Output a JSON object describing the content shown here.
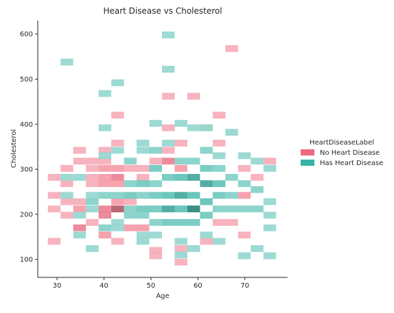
{
  "chart_data": {
    "type": "heatmap",
    "title": "Heart Disease vs Cholesterol",
    "xlabel": "Age",
    "ylabel": "Cholesterol",
    "xlim": [
      25.9,
      79.1
    ],
    "ylim": [
      60,
      630
    ],
    "x_ticks": [
      30,
      40,
      50,
      60,
      70
    ],
    "y_ticks": [
      100,
      200,
      300,
      400,
      500,
      600
    ],
    "x_bin_width": 2.7,
    "y_bin_width": 15,
    "grid": false,
    "legend": {
      "title": "HeartDiseaseLabel",
      "placement": "right"
    },
    "series": [
      {
        "name": "No Heart Disease",
        "color": "#f0687e",
        "cells": [
          {
            "x": 29.4,
            "y": 282,
            "count": 1
          },
          {
            "x": 29.4,
            "y": 242,
            "count": 1
          },
          {
            "x": 29.4,
            "y": 212,
            "count": 1
          },
          {
            "x": 29.4,
            "y": 140,
            "count": 1
          },
          {
            "x": 32.1,
            "y": 302,
            "count": 1
          },
          {
            "x": 32.1,
            "y": 268,
            "count": 1
          },
          {
            "x": 32.1,
            "y": 228,
            "count": 1
          },
          {
            "x": 32.1,
            "y": 198,
            "count": 1
          },
          {
            "x": 34.8,
            "y": 342,
            "count": 1
          },
          {
            "x": 34.8,
            "y": 318,
            "count": 1
          },
          {
            "x": 34.8,
            "y": 228,
            "count": 1
          },
          {
            "x": 34.8,
            "y": 212,
            "count": 2
          },
          {
            "x": 34.8,
            "y": 170,
            "count": 3
          },
          {
            "x": 37.5,
            "y": 318,
            "count": 1
          },
          {
            "x": 37.5,
            "y": 302,
            "count": 1
          },
          {
            "x": 37.5,
            "y": 282,
            "count": 1
          },
          {
            "x": 37.5,
            "y": 268,
            "count": 1
          },
          {
            "x": 37.5,
            "y": 182,
            "count": 1
          },
          {
            "x": 40.2,
            "y": 342,
            "count": 1
          },
          {
            "x": 40.2,
            "y": 318,
            "count": 1
          },
          {
            "x": 40.2,
            "y": 302,
            "count": 2
          },
          {
            "x": 40.2,
            "y": 282,
            "count": 2
          },
          {
            "x": 40.2,
            "y": 268,
            "count": 2
          },
          {
            "x": 40.2,
            "y": 212,
            "count": 3
          },
          {
            "x": 40.2,
            "y": 198,
            "count": 3
          },
          {
            "x": 40.2,
            "y": 154,
            "count": 2
          },
          {
            "x": 42.9,
            "y": 420,
            "count": 1
          },
          {
            "x": 42.9,
            "y": 358,
            "count": 1
          },
          {
            "x": 42.9,
            "y": 302,
            "count": 2
          },
          {
            "x": 42.9,
            "y": 282,
            "count": 3
          },
          {
            "x": 42.9,
            "y": 268,
            "count": 2
          },
          {
            "x": 42.9,
            "y": 228,
            "count": 2
          },
          {
            "x": 42.9,
            "y": 212,
            "count": 4
          },
          {
            "x": 42.9,
            "y": 140,
            "count": 1
          },
          {
            "x": 45.6,
            "y": 302,
            "count": 1
          },
          {
            "x": 45.6,
            "y": 228,
            "count": 1
          },
          {
            "x": 45.6,
            "y": 170,
            "count": 2
          },
          {
            "x": 48.3,
            "y": 302,
            "count": 1
          },
          {
            "x": 48.3,
            "y": 282,
            "count": 1
          },
          {
            "x": 48.3,
            "y": 170,
            "count": 2
          },
          {
            "x": 51.0,
            "y": 318,
            "count": 1
          },
          {
            "x": 51.0,
            "y": 120,
            "count": 1
          },
          {
            "x": 51.0,
            "y": 108,
            "count": 1
          },
          {
            "x": 53.7,
            "y": 462,
            "count": 1
          },
          {
            "x": 53.7,
            "y": 392,
            "count": 1
          },
          {
            "x": 53.7,
            "y": 342,
            "count": 1
          },
          {
            "x": 53.7,
            "y": 318,
            "count": 3
          },
          {
            "x": 56.4,
            "y": 358,
            "count": 1
          },
          {
            "x": 56.4,
            "y": 302,
            "count": 2
          },
          {
            "x": 56.4,
            "y": 124,
            "count": 1
          },
          {
            "x": 56.4,
            "y": 94,
            "count": 1
          },
          {
            "x": 59.1,
            "y": 462,
            "count": 1
          },
          {
            "x": 61.8,
            "y": 392,
            "count": 1
          },
          {
            "x": 61.8,
            "y": 140,
            "count": 1
          },
          {
            "x": 64.5,
            "y": 420,
            "count": 1
          },
          {
            "x": 64.5,
            "y": 358,
            "count": 1
          },
          {
            "x": 64.5,
            "y": 182,
            "count": 1
          },
          {
            "x": 67.2,
            "y": 568,
            "count": 1
          },
          {
            "x": 67.2,
            "y": 182,
            "count": 1
          },
          {
            "x": 69.9,
            "y": 302,
            "count": 1
          },
          {
            "x": 69.9,
            "y": 242,
            "count": 2
          },
          {
            "x": 69.9,
            "y": 154,
            "count": 1
          },
          {
            "x": 72.6,
            "y": 282,
            "count": 1
          },
          {
            "x": 75.3,
            "y": 318,
            "count": 1
          }
        ]
      },
      {
        "name": "Has Heart Disease",
        "color": "#36b3a5",
        "cells": [
          {
            "x": 32.1,
            "y": 538,
            "count": 1
          },
          {
            "x": 32.1,
            "y": 282,
            "count": 1
          },
          {
            "x": 32.1,
            "y": 242,
            "count": 1
          },
          {
            "x": 34.8,
            "y": 282,
            "count": 1
          },
          {
            "x": 34.8,
            "y": 198,
            "count": 1
          },
          {
            "x": 34.8,
            "y": 154,
            "count": 1
          },
          {
            "x": 37.5,
            "y": 242,
            "count": 1
          },
          {
            "x": 37.5,
            "y": 228,
            "count": 2
          },
          {
            "x": 37.5,
            "y": 212,
            "count": 1
          },
          {
            "x": 37.5,
            "y": 124,
            "count": 1
          },
          {
            "x": 40.2,
            "y": 468,
            "count": 1
          },
          {
            "x": 40.2,
            "y": 392,
            "count": 1
          },
          {
            "x": 40.2,
            "y": 330,
            "count": 1
          },
          {
            "x": 40.2,
            "y": 242,
            "count": 2
          },
          {
            "x": 40.2,
            "y": 170,
            "count": 2
          },
          {
            "x": 42.9,
            "y": 492,
            "count": 1
          },
          {
            "x": 42.9,
            "y": 342,
            "count": 1
          },
          {
            "x": 42.9,
            "y": 242,
            "count": 2
          },
          {
            "x": 42.9,
            "y": 182,
            "count": 1
          },
          {
            "x": 42.9,
            "y": 170,
            "count": 1
          },
          {
            "x": 45.6,
            "y": 318,
            "count": 2
          },
          {
            "x": 45.6,
            "y": 268,
            "count": 2
          },
          {
            "x": 45.6,
            "y": 242,
            "count": 3
          },
          {
            "x": 45.6,
            "y": 212,
            "count": 2
          },
          {
            "x": 45.6,
            "y": 198,
            "count": 2
          },
          {
            "x": 48.3,
            "y": 358,
            "count": 1
          },
          {
            "x": 48.3,
            "y": 342,
            "count": 1
          },
          {
            "x": 48.3,
            "y": 268,
            "count": 3
          },
          {
            "x": 48.3,
            "y": 242,
            "count": 2
          },
          {
            "x": 48.3,
            "y": 212,
            "count": 3
          },
          {
            "x": 48.3,
            "y": 198,
            "count": 2
          },
          {
            "x": 48.3,
            "y": 154,
            "count": 1
          },
          {
            "x": 48.3,
            "y": 140,
            "count": 1
          },
          {
            "x": 51.0,
            "y": 402,
            "count": 1
          },
          {
            "x": 51.0,
            "y": 342,
            "count": 2
          },
          {
            "x": 51.0,
            "y": 302,
            "count": 3
          },
          {
            "x": 51.0,
            "y": 268,
            "count": 2
          },
          {
            "x": 51.0,
            "y": 242,
            "count": 3
          },
          {
            "x": 51.0,
            "y": 212,
            "count": 3
          },
          {
            "x": 51.0,
            "y": 182,
            "count": 2
          },
          {
            "x": 51.0,
            "y": 154,
            "count": 1
          },
          {
            "x": 53.7,
            "y": 598,
            "count": 1
          },
          {
            "x": 53.7,
            "y": 522,
            "count": 1
          },
          {
            "x": 53.7,
            "y": 358,
            "count": 1
          },
          {
            "x": 53.7,
            "y": 282,
            "count": 3
          },
          {
            "x": 53.7,
            "y": 242,
            "count": 4
          },
          {
            "x": 53.7,
            "y": 212,
            "count": 5
          },
          {
            "x": 53.7,
            "y": 182,
            "count": 3
          },
          {
            "x": 56.4,
            "y": 402,
            "count": 1
          },
          {
            "x": 56.4,
            "y": 318,
            "count": 2
          },
          {
            "x": 56.4,
            "y": 282,
            "count": 4
          },
          {
            "x": 56.4,
            "y": 242,
            "count": 5
          },
          {
            "x": 56.4,
            "y": 212,
            "count": 4
          },
          {
            "x": 56.4,
            "y": 182,
            "count": 3
          },
          {
            "x": 56.4,
            "y": 140,
            "count": 1
          },
          {
            "x": 56.4,
            "y": 110,
            "count": 1
          },
          {
            "x": 59.1,
            "y": 392,
            "count": 1
          },
          {
            "x": 59.1,
            "y": 318,
            "count": 2
          },
          {
            "x": 59.1,
            "y": 282,
            "count": 5
          },
          {
            "x": 59.1,
            "y": 242,
            "count": 4
          },
          {
            "x": 59.1,
            "y": 212,
            "count": 6
          },
          {
            "x": 59.1,
            "y": 182,
            "count": 3
          },
          {
            "x": 59.1,
            "y": 124,
            "count": 1
          },
          {
            "x": 61.8,
            "y": 392,
            "count": 1
          },
          {
            "x": 61.8,
            "y": 342,
            "count": 2
          },
          {
            "x": 61.8,
            "y": 302,
            "count": 3
          },
          {
            "x": 61.8,
            "y": 268,
            "count": 5
          },
          {
            "x": 61.8,
            "y": 228,
            "count": 4
          },
          {
            "x": 61.8,
            "y": 198,
            "count": 3
          },
          {
            "x": 61.8,
            "y": 154,
            "count": 1
          },
          {
            "x": 64.5,
            "y": 330,
            "count": 1
          },
          {
            "x": 64.5,
            "y": 302,
            "count": 2
          },
          {
            "x": 64.5,
            "y": 268,
            "count": 4
          },
          {
            "x": 64.5,
            "y": 242,
            "count": 3
          },
          {
            "x": 64.5,
            "y": 212,
            "count": 2
          },
          {
            "x": 64.5,
            "y": 140,
            "count": 1
          },
          {
            "x": 67.2,
            "y": 382,
            "count": 1
          },
          {
            "x": 67.2,
            "y": 282,
            "count": 2
          },
          {
            "x": 67.2,
            "y": 242,
            "count": 2
          },
          {
            "x": 67.2,
            "y": 212,
            "count": 2
          },
          {
            "x": 69.9,
            "y": 330,
            "count": 1
          },
          {
            "x": 69.9,
            "y": 268,
            "count": 2
          },
          {
            "x": 69.9,
            "y": 212,
            "count": 2
          },
          {
            "x": 69.9,
            "y": 108,
            "count": 1
          },
          {
            "x": 72.6,
            "y": 318,
            "count": 1
          },
          {
            "x": 72.6,
            "y": 255,
            "count": 2
          },
          {
            "x": 72.6,
            "y": 212,
            "count": 2
          },
          {
            "x": 72.6,
            "y": 124,
            "count": 1
          },
          {
            "x": 75.3,
            "y": 302,
            "count": 1
          },
          {
            "x": 75.3,
            "y": 228,
            "count": 1
          },
          {
            "x": 75.3,
            "y": 198,
            "count": 1
          },
          {
            "x": 75.3,
            "y": 170,
            "count": 1
          },
          {
            "x": 75.3,
            "y": 108,
            "count": 1
          }
        ]
      }
    ]
  }
}
